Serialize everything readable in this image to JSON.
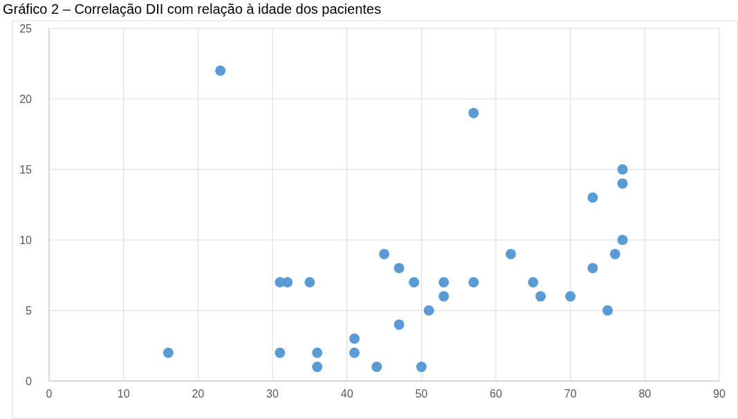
{
  "chart_data": {
    "type": "scatter",
    "title": "Gráfico 2 – Correlação DII com relação à idade dos pacientes",
    "series": [
      {
        "color": "#5b9bd5",
        "x": [
          16,
          23,
          31,
          32,
          35,
          31,
          36,
          36,
          41,
          41,
          44,
          45,
          47,
          47,
          49,
          50,
          51,
          53,
          53,
          57,
          57,
          62,
          65,
          66,
          70,
          73,
          73,
          75,
          76,
          77,
          77,
          77
        ],
        "values": [
          2,
          22,
          7,
          7,
          7,
          2,
          2,
          1,
          3,
          2,
          1,
          9,
          8,
          4,
          7,
          1,
          5,
          7,
          6,
          19,
          7,
          9,
          7,
          6,
          6,
          13,
          8,
          5,
          9,
          15,
          14,
          10
        ]
      }
    ],
    "xlim": [
      0,
      90
    ],
    "xticks": [
      0,
      10,
      20,
      30,
      40,
      50,
      60,
      70,
      80,
      90
    ],
    "ylim": [
      0,
      25
    ],
    "yticks": [
      0,
      5,
      10,
      15,
      20,
      25
    ],
    "grid": true,
    "marker": "circle"
  }
}
